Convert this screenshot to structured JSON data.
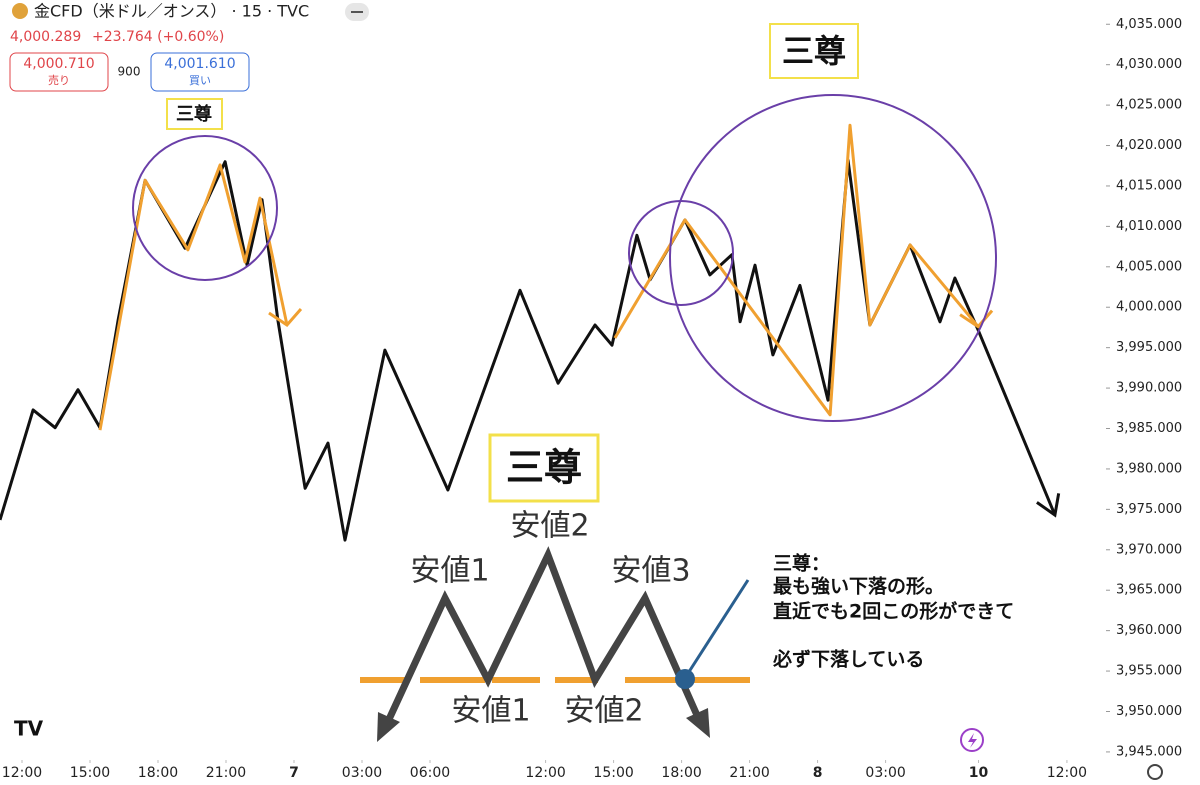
{
  "chart_data": {
    "type": "line",
    "title": "金CFD（米ドル／オンス） · 15 · TVC",
    "quote": "4,000.289",
    "change": "+23.764 (+0.60%)",
    "sell_price": "4,000.710",
    "sell_label": "売り",
    "spread": "900",
    "buy_price": "4,001.610",
    "buy_label": "買い",
    "xlim": [
      -0.97,
      47.78
    ],
    "ylim": [
      3944,
      4038
    ],
    "xticks": [
      {
        "value": 0,
        "label": "12:00"
      },
      {
        "value": 3,
        "label": "15:00"
      },
      {
        "value": 6,
        "label": "18:00"
      },
      {
        "value": 9,
        "label": "21:00"
      },
      {
        "value": 12,
        "label": "7"
      },
      {
        "value": 15,
        "label": "03:00"
      },
      {
        "value": 18,
        "label": "06:00"
      },
      {
        "value": 23.1,
        "label": "12:00"
      },
      {
        "value": 26.1,
        "label": "15:00"
      },
      {
        "value": 29.1,
        "label": "18:00"
      },
      {
        "value": 32.1,
        "label": "21:00"
      },
      {
        "value": 35.1,
        "label": "8"
      },
      {
        "value": 38.1,
        "label": "03:00"
      },
      {
        "value": 42.2,
        "label": "10"
      },
      {
        "value": 46.1,
        "label": "12:00"
      }
    ],
    "yticks": [
      {
        "value": 4035,
        "label": "4,035.000"
      },
      {
        "value": 4030,
        "label": "4,030.000"
      },
      {
        "value": 4025,
        "label": "4,025.000"
      },
      {
        "value": 4020,
        "label": "4,020.000"
      },
      {
        "value": 4015,
        "label": "4,015.000"
      },
      {
        "value": 4010,
        "label": "4,010.000"
      },
      {
        "value": 4005,
        "label": "4,005.000"
      },
      {
        "value": 4000,
        "label": "4,000.000"
      },
      {
        "value": 3995,
        "label": "3,995.000"
      },
      {
        "value": 3990,
        "label": "3,990.000"
      },
      {
        "value": 3985,
        "label": "3,985.000"
      },
      {
        "value": 3980,
        "label": "3,980.000"
      },
      {
        "value": 3975,
        "label": "3,975.000"
      },
      {
        "value": 3970,
        "label": "3,970.000"
      },
      {
        "value": 3965,
        "label": "3,965.000"
      },
      {
        "value": 3960,
        "label": "3,960.000"
      },
      {
        "value": 3955,
        "label": "3,955.000"
      },
      {
        "value": 3950,
        "label": "3,950.000"
      },
      {
        "value": 3945,
        "label": "3,945.000"
      }
    ],
    "series": [
      {
        "color": "#111111",
        "x": [
          -0.97,
          0.49,
          1.46,
          2.47,
          3.44,
          4.24,
          5.43,
          7.19,
          8.96,
          9.93,
          10.59,
          11.29,
          12.49,
          13.5,
          14.25,
          16.01,
          18.79,
          21.97,
          23.65,
          25.28,
          26.03,
          27.13,
          27.71,
          29.25,
          30.35,
          31.32,
          31.68,
          32.34,
          33.13,
          34.32,
          35.56,
          36.44,
          37.41,
          39.18,
          40.5,
          41.16,
          42.18,
          45.57
        ],
        "values": [
          3973.7,
          3987.3,
          3985.1,
          3989.8,
          3985.1,
          3998.4,
          4015.7,
          4007.3,
          4018.0,
          4005.2,
          4013.3,
          3998.4,
          3977.6,
          3983.2,
          3971.2,
          3994.7,
          3977.4,
          4002.1,
          3990.6,
          3997.8,
          3995.3,
          4008.9,
          4003.4,
          4010.8,
          4004.0,
          4006.5,
          3998.2,
          4005.2,
          3994.1,
          4002.7,
          3988.5,
          4018.2,
          3997.8,
          4007.7,
          3998.2,
          4003.6,
          3997.2,
          3974.3
        ]
      },
      {
        "color": "#f0a030",
        "x": [
          3.44,
          5.43,
          7.32,
          8.74,
          9.84,
          10.5,
          11.69,
          null,
          26.16,
          29.25,
          35.65,
          36.53,
          37.41,
          39.18,
          42.18
        ],
        "values": [
          3984.8,
          4015.7,
          4007.1,
          4017.6,
          4005.6,
          4013.5,
          3997.8,
          null,
          3996.2,
          4010.8,
          3986.7,
          4022.5,
          3997.8,
          4007.7,
          3997.6
        ]
      }
    ],
    "annotations": {
      "pattern_small": "三尊",
      "pattern_large": "三尊",
      "pattern_center": "三尊",
      "high_1": "安値1",
      "high_2": "安値2",
      "high_3": "安値3",
      "low_1": "安値1",
      "low_2": "安値2",
      "note": [
        "三尊：",
        "最も強い下落の形。",
        "直近でも2回この形ができて",
        "必ず下落している"
      ]
    }
  }
}
